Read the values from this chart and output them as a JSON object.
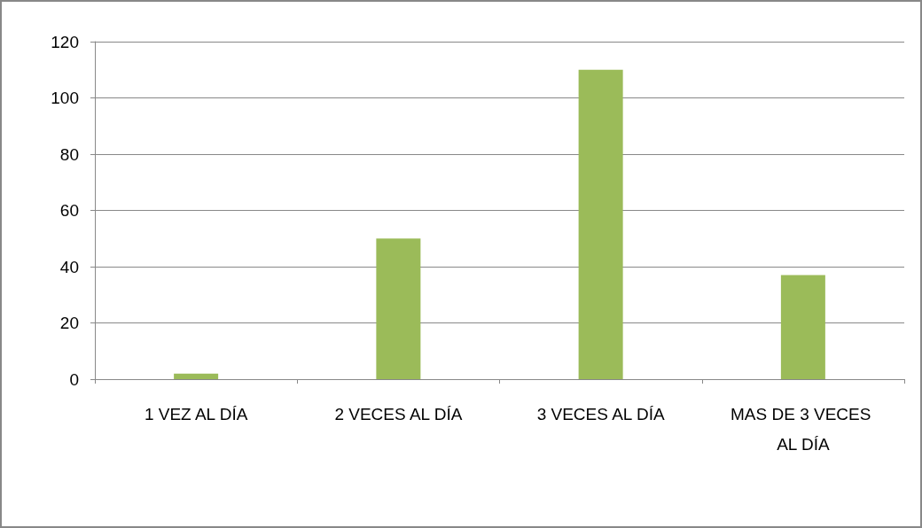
{
  "chart_data": {
    "type": "bar",
    "categories": [
      "1 VEZ AL DÍA",
      "2 VECES AL DÍA",
      "3 VECES AL DÍA",
      "MAS DE 3 VECES AL DÍA"
    ],
    "values": [
      2,
      50,
      110,
      37
    ],
    "color": "#9bbb59",
    "ylim": [
      0,
      120
    ],
    "yticks": [
      0,
      20,
      40,
      60,
      80,
      100,
      120
    ],
    "grid": "y"
  }
}
